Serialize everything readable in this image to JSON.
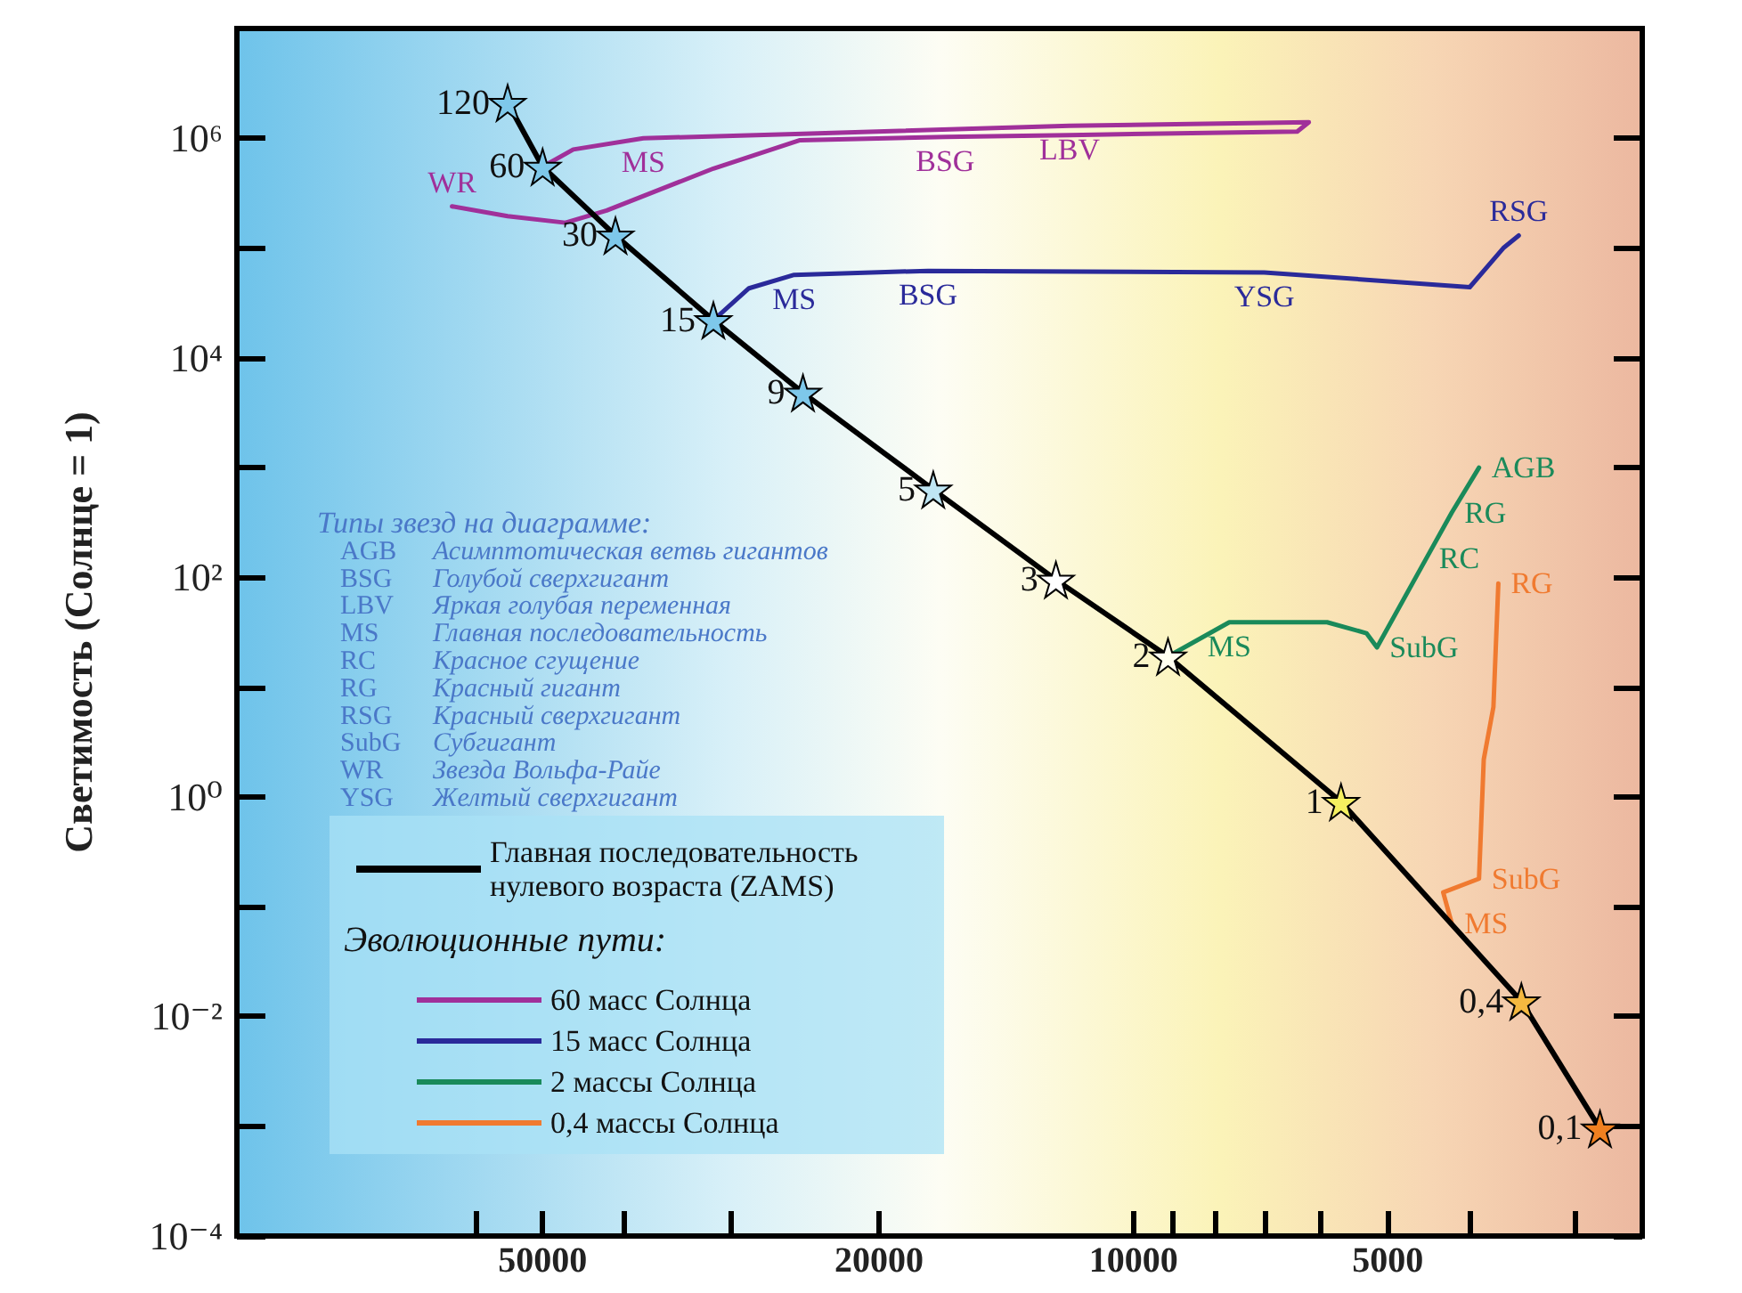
{
  "chart_data": {
    "type": "line",
    "ylabel": "Светимость (Солнце = 1)",
    "legend": "bottom left",
    "legend_title": "Эволюционные пути:",
    "log": "xy",
    "grid": false,
    "xlim": [
      115000,
      2500
    ],
    "xticks": [
      {
        "value": 60000,
        "label": null
      },
      50000,
      {
        "value": 40000,
        "label": null
      },
      {
        "value": 30000,
        "label": null
      },
      20000,
      10000,
      {
        "value": 9000,
        "label": null
      },
      {
        "value": 8000,
        "label": null
      },
      {
        "value": 7000,
        "label": null
      },
      {
        "value": 6000,
        "label": null
      },
      5000,
      {
        "value": 4000,
        "label": null
      },
      {
        "value": 3000,
        "label": null
      }
    ],
    "ylim": [
      0.0001,
      10000000
    ],
    "yticks": [
      {
        "value": 0.0001,
        "label": "10⁻⁴"
      },
      {
        "value": 0.001,
        "label": null
      },
      {
        "value": 0.01,
        "label": "10⁻²"
      },
      {
        "value": 0.1,
        "label": null
      },
      {
        "value": 1,
        "label": "10⁰"
      },
      {
        "value": 10,
        "label": null
      },
      {
        "value": 100,
        "label": "10²"
      },
      {
        "value": 1000,
        "label": null
      },
      {
        "value": 10000,
        "label": "10⁴"
      },
      {
        "value": 100000,
        "label": null
      },
      {
        "value": 1000000,
        "label": "10⁶"
      }
    ],
    "annotations": [
      "Типы звезд на диаграмме:",
      "AGB Асимптотическая ветвь гигантов",
      "BSG Голубой сверхгигант",
      "LBV Яркая голубая переменная",
      "MS Главная последовательность",
      "RC Красное сгущение",
      "RG Красный гигант",
      "RSG Красный сверхгигант",
      "SubG Субгигант",
      "WR Звезда Вольфа-Райе",
      "YSG Желтый сверхгигант",
      {
        "text": "120",
        "x": 55000,
        "y": 2100000
      },
      {
        "text": "60",
        "x": 50000,
        "y": 550000
      },
      {
        "text": "30",
        "x": 41000,
        "y": 130000
      },
      {
        "text": "15",
        "x": 31400,
        "y": 22000
      },
      {
        "text": "9",
        "x": 24600,
        "y": 4800
      },
      {
        "text": "5",
        "x": 17250,
        "y": 630
      },
      {
        "text": "3",
        "x": 12350,
        "y": 95
      },
      {
        "text": "2",
        "x": 9100,
        "y": 19
      },
      {
        "text": "1",
        "x": 5680,
        "y": 0.9
      },
      {
        "text": "0,4",
        "x": 3475,
        "y": 0.0137
      },
      {
        "text": "0,1",
        "x": 2805,
        "y": 0.00095
      },
      {
        "text": "MS",
        "x": 38000,
        "y": 1000000
      },
      {
        "text": "LBV",
        "x": 11900,
        "y": 1300000
      },
      {
        "text": "BSG",
        "x": 16700,
        "y": 1030000
      },
      {
        "text": "WR",
        "x": 64000,
        "y": 240000
      },
      {
        "text": "MS",
        "x": 25200,
        "y": 57000
      },
      {
        "text": "BSG",
        "x": 17500,
        "y": 62000
      },
      {
        "text": "YSG",
        "x": 7000,
        "y": 60000
      },
      {
        "text": "RSG",
        "x": 3500,
        "y": 130000
      },
      {
        "text": "MS",
        "x": 7700,
        "y": 39
      },
      {
        "text": "SubG",
        "x": 5150,
        "y": 23
      },
      {
        "text": "RC",
        "x": 4500,
        "y": 150
      },
      {
        "text": "RG",
        "x": 4200,
        "y": 390
      },
      {
        "text": "AGB",
        "x": 3900,
        "y": 1000
      },
      {
        "text": "MS",
        "x": 4200,
        "y": 0.07
      },
      {
        "text": "SubG",
        "x": 3900,
        "y": 0.18
      },
      {
        "text": "RG",
        "x": 3700,
        "y": 88
      }
    ],
    "series": [
      {
        "name": "Главная последовательность нулевого возраста (ZAMS)",
        "color": "#000000",
        "marker": "star",
        "x": [
          55000,
          50000,
          41000,
          31400,
          24600,
          17250,
          12350,
          9100,
          5680,
          3475,
          2805
        ],
        "values": [
          2100000,
          550000,
          130000,
          22000,
          4800,
          630,
          95,
          19,
          0.9,
          0.0137,
          0.00095
        ],
        "colors": [
          "#7ec8ea",
          "#7ec8ea",
          "#7ec8ea",
          "#7ec8ea",
          "#7ec8ea",
          "#bfe6f4",
          "#ffffff",
          "#fffff0",
          "#f5f060",
          "#f4b840",
          "#f08020"
        ]
      },
      {
        "name": "60 масс Солнца",
        "color": "#a0309a",
        "marker": "none",
        "x": [
          50000,
          46000,
          38000,
          24600,
          11900,
          6200,
          6400,
          11900,
          16700,
          24800,
          31400,
          42000,
          47000,
          55000,
          64000
        ],
        "values": [
          550000,
          790000,
          1000000,
          1100000,
          1300000,
          1400000,
          1150000,
          1070000,
          1030000,
          960000,
          530000,
          220000,
          170000,
          195000,
          240000
        ]
      },
      {
        "name": "15 масс Солнца",
        "color": "#2a2a9a",
        "marker": "none",
        "x": [
          31400,
          28500,
          25200,
          17500,
          7000,
          4000,
          3650,
          3500
        ],
        "values": [
          22000,
          43000,
          57000,
          62000,
          60000,
          44000,
          100000,
          130000
        ]
      },
      {
        "name": "2 массы Солнца",
        "color": "#1a8a5a",
        "marker": "none",
        "x": [
          9100,
          7700,
          5900,
          5300,
          5150,
          4500,
          4200,
          3900
        ],
        "values": [
          19,
          39,
          39,
          31,
          23,
          150,
          390,
          1000
        ]
      },
      {
        "name": "0,4 массы Солнца",
        "color": "#f07a30",
        "marker": "none",
        "x": [
          4200,
          4300,
          3900,
          3850,
          3750,
          3700
        ],
        "values": [
          0.07,
          0.135,
          0.18,
          2.2,
          6.6,
          88
        ]
      }
    ]
  }
}
